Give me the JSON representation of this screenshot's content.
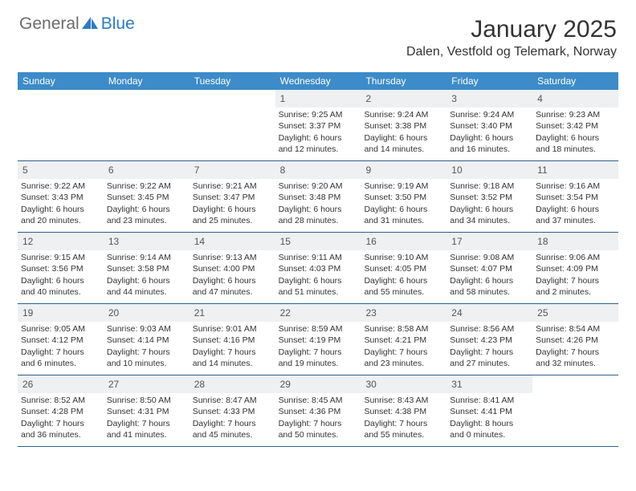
{
  "logo": {
    "text1": "General",
    "text2": "Blue"
  },
  "header": {
    "title": "January 2025",
    "location": "Dalen, Vestfold og Telemark, Norway"
  },
  "colors": {
    "header_bg": "#3d8bc8",
    "header_text": "#ffffff",
    "daynum_bg": "#eef0f2",
    "border": "#2d5f8a",
    "logo_gray": "#6b6b6b",
    "logo_blue": "#2d7bc0"
  },
  "day_headers": [
    "Sunday",
    "Monday",
    "Tuesday",
    "Wednesday",
    "Thursday",
    "Friday",
    "Saturday"
  ],
  "weeks": [
    [
      {
        "num": "",
        "lines": []
      },
      {
        "num": "",
        "lines": []
      },
      {
        "num": "",
        "lines": []
      },
      {
        "num": "1",
        "lines": [
          "Sunrise: 9:25 AM",
          "Sunset: 3:37 PM",
          "Daylight: 6 hours and 12 minutes."
        ]
      },
      {
        "num": "2",
        "lines": [
          "Sunrise: 9:24 AM",
          "Sunset: 3:38 PM",
          "Daylight: 6 hours and 14 minutes."
        ]
      },
      {
        "num": "3",
        "lines": [
          "Sunrise: 9:24 AM",
          "Sunset: 3:40 PM",
          "Daylight: 6 hours and 16 minutes."
        ]
      },
      {
        "num": "4",
        "lines": [
          "Sunrise: 9:23 AM",
          "Sunset: 3:42 PM",
          "Daylight: 6 hours and 18 minutes."
        ]
      }
    ],
    [
      {
        "num": "5",
        "lines": [
          "Sunrise: 9:22 AM",
          "Sunset: 3:43 PM",
          "Daylight: 6 hours and 20 minutes."
        ]
      },
      {
        "num": "6",
        "lines": [
          "Sunrise: 9:22 AM",
          "Sunset: 3:45 PM",
          "Daylight: 6 hours and 23 minutes."
        ]
      },
      {
        "num": "7",
        "lines": [
          "Sunrise: 9:21 AM",
          "Sunset: 3:47 PM",
          "Daylight: 6 hours and 25 minutes."
        ]
      },
      {
        "num": "8",
        "lines": [
          "Sunrise: 9:20 AM",
          "Sunset: 3:48 PM",
          "Daylight: 6 hours and 28 minutes."
        ]
      },
      {
        "num": "9",
        "lines": [
          "Sunrise: 9:19 AM",
          "Sunset: 3:50 PM",
          "Daylight: 6 hours and 31 minutes."
        ]
      },
      {
        "num": "10",
        "lines": [
          "Sunrise: 9:18 AM",
          "Sunset: 3:52 PM",
          "Daylight: 6 hours and 34 minutes."
        ]
      },
      {
        "num": "11",
        "lines": [
          "Sunrise: 9:16 AM",
          "Sunset: 3:54 PM",
          "Daylight: 6 hours and 37 minutes."
        ]
      }
    ],
    [
      {
        "num": "12",
        "lines": [
          "Sunrise: 9:15 AM",
          "Sunset: 3:56 PM",
          "Daylight: 6 hours and 40 minutes."
        ]
      },
      {
        "num": "13",
        "lines": [
          "Sunrise: 9:14 AM",
          "Sunset: 3:58 PM",
          "Daylight: 6 hours and 44 minutes."
        ]
      },
      {
        "num": "14",
        "lines": [
          "Sunrise: 9:13 AM",
          "Sunset: 4:00 PM",
          "Daylight: 6 hours and 47 minutes."
        ]
      },
      {
        "num": "15",
        "lines": [
          "Sunrise: 9:11 AM",
          "Sunset: 4:03 PM",
          "Daylight: 6 hours and 51 minutes."
        ]
      },
      {
        "num": "16",
        "lines": [
          "Sunrise: 9:10 AM",
          "Sunset: 4:05 PM",
          "Daylight: 6 hours and 55 minutes."
        ]
      },
      {
        "num": "17",
        "lines": [
          "Sunrise: 9:08 AM",
          "Sunset: 4:07 PM",
          "Daylight: 6 hours and 58 minutes."
        ]
      },
      {
        "num": "18",
        "lines": [
          "Sunrise: 9:06 AM",
          "Sunset: 4:09 PM",
          "Daylight: 7 hours and 2 minutes."
        ]
      }
    ],
    [
      {
        "num": "19",
        "lines": [
          "Sunrise: 9:05 AM",
          "Sunset: 4:12 PM",
          "Daylight: 7 hours and 6 minutes."
        ]
      },
      {
        "num": "20",
        "lines": [
          "Sunrise: 9:03 AM",
          "Sunset: 4:14 PM",
          "Daylight: 7 hours and 10 minutes."
        ]
      },
      {
        "num": "21",
        "lines": [
          "Sunrise: 9:01 AM",
          "Sunset: 4:16 PM",
          "Daylight: 7 hours and 14 minutes."
        ]
      },
      {
        "num": "22",
        "lines": [
          "Sunrise: 8:59 AM",
          "Sunset: 4:19 PM",
          "Daylight: 7 hours and 19 minutes."
        ]
      },
      {
        "num": "23",
        "lines": [
          "Sunrise: 8:58 AM",
          "Sunset: 4:21 PM",
          "Daylight: 7 hours and 23 minutes."
        ]
      },
      {
        "num": "24",
        "lines": [
          "Sunrise: 8:56 AM",
          "Sunset: 4:23 PM",
          "Daylight: 7 hours and 27 minutes."
        ]
      },
      {
        "num": "25",
        "lines": [
          "Sunrise: 8:54 AM",
          "Sunset: 4:26 PM",
          "Daylight: 7 hours and 32 minutes."
        ]
      }
    ],
    [
      {
        "num": "26",
        "lines": [
          "Sunrise: 8:52 AM",
          "Sunset: 4:28 PM",
          "Daylight: 7 hours and 36 minutes."
        ]
      },
      {
        "num": "27",
        "lines": [
          "Sunrise: 8:50 AM",
          "Sunset: 4:31 PM",
          "Daylight: 7 hours and 41 minutes."
        ]
      },
      {
        "num": "28",
        "lines": [
          "Sunrise: 8:47 AM",
          "Sunset: 4:33 PM",
          "Daylight: 7 hours and 45 minutes."
        ]
      },
      {
        "num": "29",
        "lines": [
          "Sunrise: 8:45 AM",
          "Sunset: 4:36 PM",
          "Daylight: 7 hours and 50 minutes."
        ]
      },
      {
        "num": "30",
        "lines": [
          "Sunrise: 8:43 AM",
          "Sunset: 4:38 PM",
          "Daylight: 7 hours and 55 minutes."
        ]
      },
      {
        "num": "31",
        "lines": [
          "Sunrise: 8:41 AM",
          "Sunset: 4:41 PM",
          "Daylight: 8 hours and 0 minutes."
        ]
      },
      {
        "num": "",
        "lines": []
      }
    ]
  ]
}
